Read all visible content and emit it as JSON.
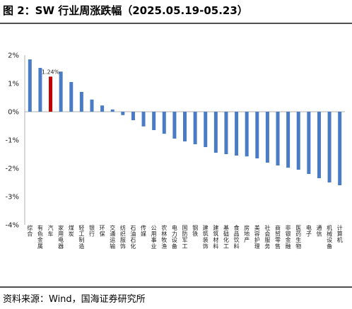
{
  "header": {
    "title": "图 2：SW 行业周涨跌幅（2025.05.19-05.23）"
  },
  "footer": {
    "source": "资料来源：Wind，国海证券研究所"
  },
  "colors": {
    "bar": "#4a7cc5",
    "highlight": "#c00000",
    "axis": "#b0b0b0"
  },
  "chart_data": {
    "type": "bar",
    "title": "图 2：SW 行业周涨跌幅（2025.05.19-05.23）",
    "xlabel": "",
    "ylabel": "",
    "ylim": [
      -4,
      2
    ],
    "yticks": [
      "2%",
      "1%",
      "0%",
      "-1%",
      "-2%",
      "-3%",
      "-4%"
    ],
    "categories": [
      "综合",
      "有色金属",
      "汽车",
      "家用电器",
      "煤炭",
      "轻工制造",
      "银行",
      "环保",
      "交通运输",
      "纺织服饰",
      "石油石化",
      "传媒",
      "公用事业",
      "农林牧渔",
      "电力设备",
      "国防军工",
      "钢铁",
      "建筑装饰",
      "建筑材料",
      "基础化工",
      "食品饮料",
      "房地产",
      "美容护理",
      "社会服务",
      "商贸零售",
      "非银金融",
      "医药生物",
      "电子",
      "通信",
      "机械设备",
      "计算机"
    ],
    "values": [
      1.85,
      1.55,
      1.24,
      1.42,
      1.05,
      0.7,
      0.43,
      0.22,
      0.08,
      -0.12,
      -0.3,
      -0.52,
      -0.65,
      -0.78,
      -0.95,
      -1.05,
      -1.15,
      -1.25,
      -1.45,
      -1.5,
      -1.55,
      -1.58,
      -1.65,
      -1.8,
      -1.9,
      -1.98,
      -2.05,
      -2.2,
      -2.35,
      -2.5,
      -2.6
    ],
    "highlight_index": 2,
    "data_labels": [
      {
        "index": 2,
        "text": "1.24%"
      }
    ],
    "grid": false,
    "legend": "none"
  }
}
